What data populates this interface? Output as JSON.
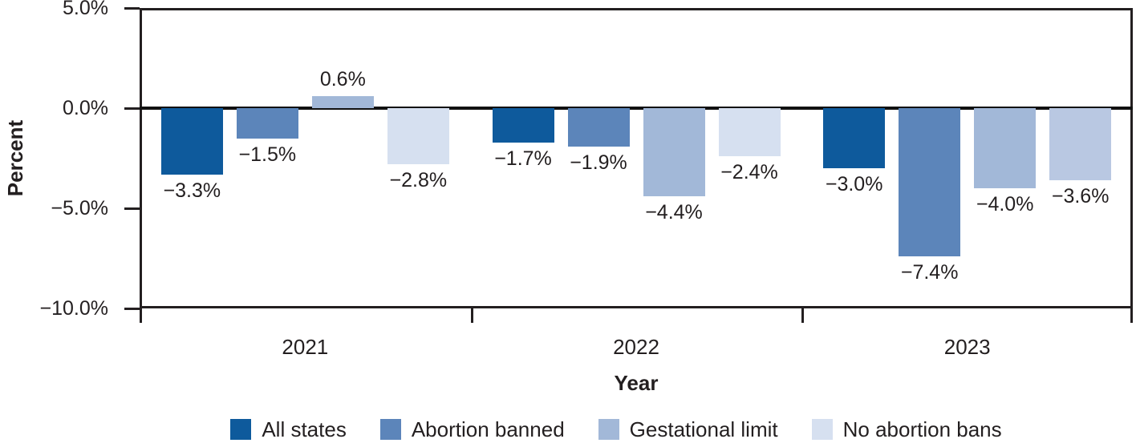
{
  "chart_data": {
    "type": "bar",
    "title": "",
    "xlabel": "Year",
    "ylabel": "Percent",
    "categories": [
      "2021",
      "2022",
      "2023"
    ],
    "series": [
      {
        "name": "All states",
        "color": "#0e5a9c",
        "values": [
          -3.3,
          -1.7,
          -3.0
        ],
        "labels": [
          "−3.3%",
          "−1.7%",
          "−3.0%"
        ]
      },
      {
        "name": "Abortion banned",
        "color": "#5c85ba",
        "values": [
          -1.5,
          -1.9,
          -7.4
        ],
        "labels": [
          "−1.5%",
          "−1.9%",
          "−7.4%"
        ]
      },
      {
        "name": "Gestational limit",
        "color": "#a2b8d8",
        "values": [
          0.6,
          -4.4,
          -4.0
        ],
        "labels": [
          "0.6%",
          "−4.4%",
          "−4.0%"
        ]
      },
      {
        "name": "No abortion bans",
        "color": "#d6e0f0",
        "values": [
          -2.8,
          -2.4,
          -3.6
        ],
        "labels": [
          "−2.8%",
          "−2.4%",
          "−3.6%"
        ],
        "point_colors": [
          null,
          null,
          "#b9c8e2"
        ]
      }
    ],
    "ylim": [
      -10,
      5
    ],
    "yticks": [
      {
        "value": 5,
        "label": "5.0%"
      },
      {
        "value": 0,
        "label": "0.0%"
      },
      {
        "value": -5,
        "label": "−5.0%"
      },
      {
        "value": -10,
        "label": "−10.0%"
      }
    ],
    "grid": false,
    "legend_position": "bottom",
    "axis_color": "#231f20",
    "background_color": "#ffffff"
  }
}
